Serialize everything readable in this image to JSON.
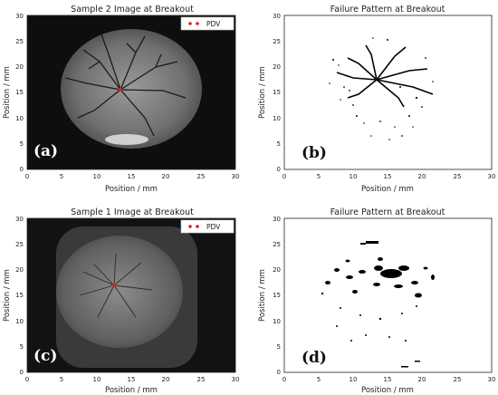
{
  "panels": [
    {
      "id": "a",
      "title": "Sample 2 Image at Breakout",
      "xlabel": "Position / mm",
      "ylabel": "Position / mm",
      "letter": "(a)",
      "legend": "PDV",
      "xticks": [
        "0",
        "5",
        "10",
        "15",
        "20",
        "25",
        "30"
      ],
      "yticks": [
        "0",
        "5",
        "10",
        "15",
        "20",
        "25",
        "30"
      ]
    },
    {
      "id": "b",
      "title": "Failure Pattern at Breakout",
      "xlabel": "Position / mm",
      "ylabel": "Position / mm",
      "letter": "(b)",
      "xticks": [
        "0",
        "5",
        "10",
        "15",
        "20",
        "25",
        "30"
      ],
      "yticks": [
        "0",
        "5",
        "10",
        "15",
        "20",
        "25",
        "30"
      ]
    },
    {
      "id": "c",
      "title": "Sample 1 Image at Breakout",
      "xlabel": "Position / mm",
      "ylabel": "Position / mm",
      "letter": "(c)",
      "legend": "PDV",
      "xticks": [
        "0",
        "5",
        "10",
        "15",
        "20",
        "25",
        "30"
      ],
      "yticks": [
        "0",
        "5",
        "10",
        "15",
        "20",
        "25",
        "30"
      ]
    },
    {
      "id": "d",
      "title": "Failure Pattern at Breakout",
      "xlabel": "Position / mm",
      "ylabel": "Position / mm",
      "letter": "(d)",
      "xticks": [
        "0",
        "5",
        "10",
        "15",
        "20",
        "25",
        "30"
      ],
      "yticks": [
        "0",
        "5",
        "10",
        "15",
        "20",
        "25",
        "30"
      ]
    }
  ],
  "colors": {
    "pdv_marker": "#e02020",
    "image_bg": "#0e0e0e",
    "sample_gray": "#8a8a8a"
  }
}
